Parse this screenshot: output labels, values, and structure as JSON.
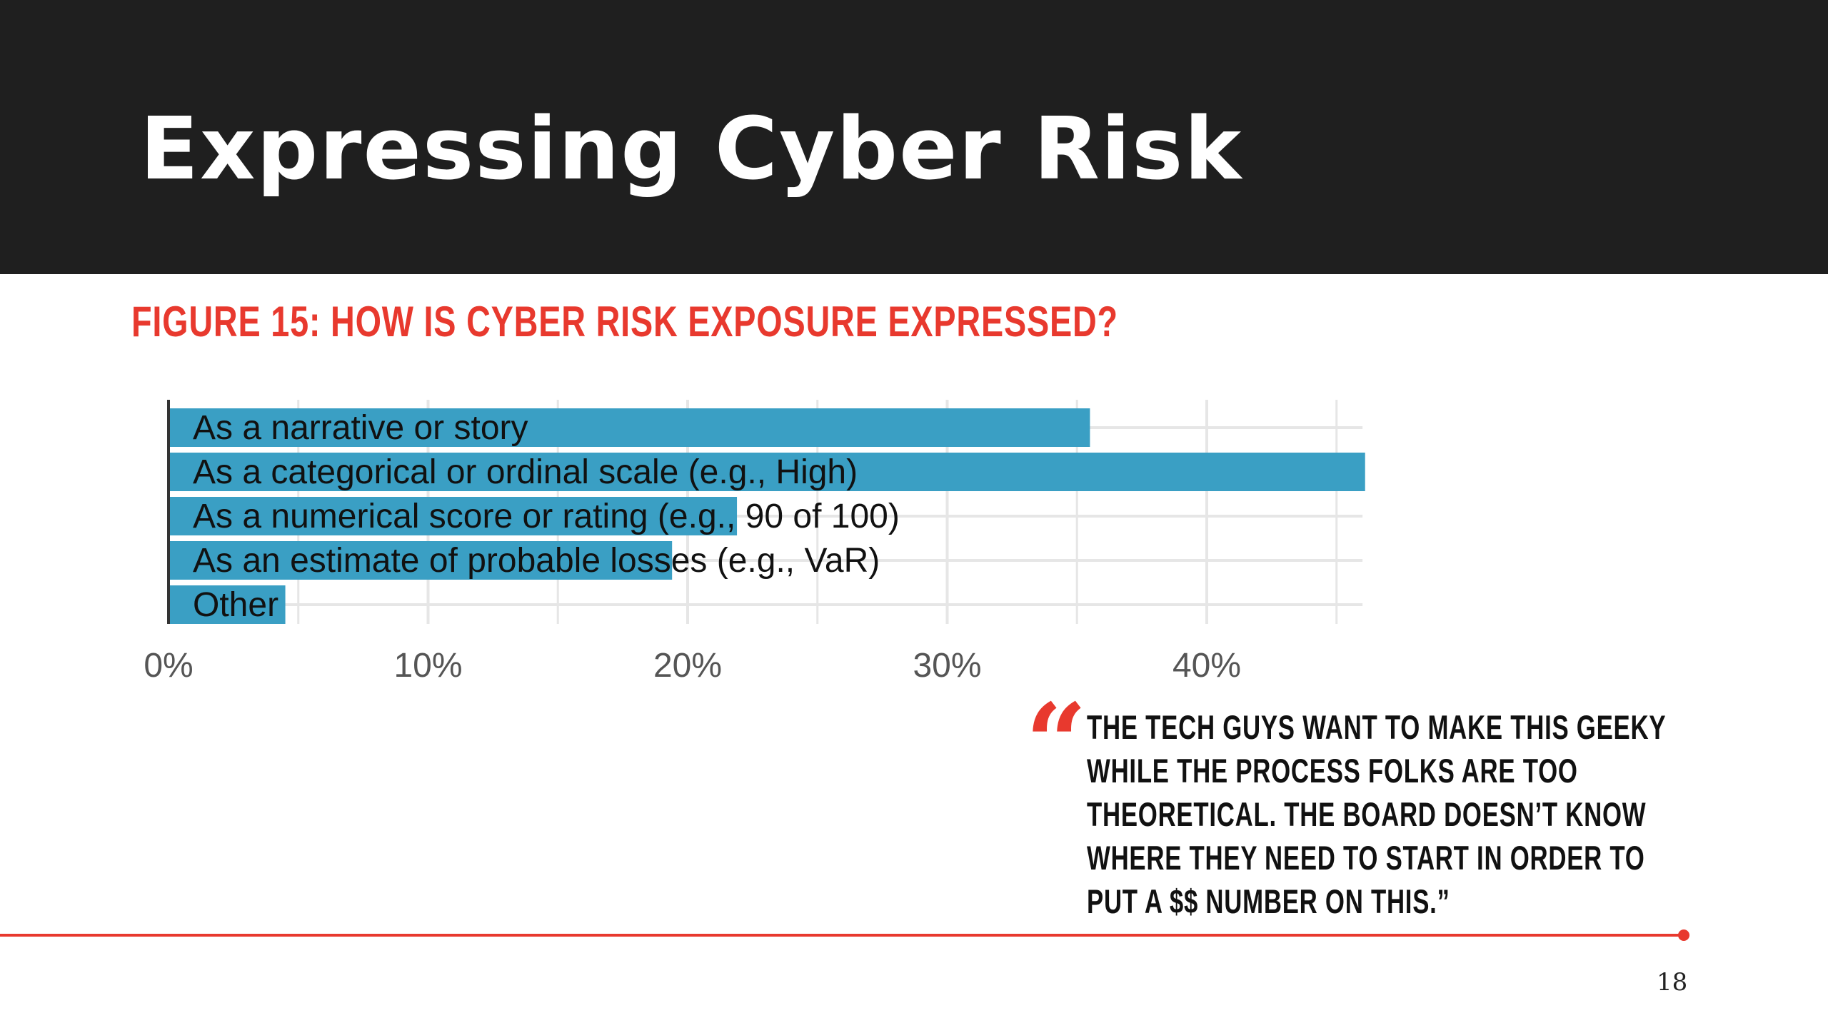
{
  "slide": {
    "title": "Expressing Cyber Risk",
    "figure_title": "FIGURE 15: HOW IS CYBER RISK EXPOSURE EXPRESSED?",
    "quote_mark": "“",
    "quote": "THE TECH GUYS WANT TO MAKE THIS GEEKY WHILE THE PROCESS FOLKS ARE TOO THEORETICAL. THE BOARD DOESN’T KNOW WHERE THEY NEED TO START IN ORDER TO PUT A $$ NUMBER ON THIS.”",
    "page_number": "18"
  },
  "colors": {
    "bar": "#3a9fc4",
    "accent": "#e8392e",
    "header_bg": "#1f1f1f",
    "grid": "#e6e6e6"
  },
  "chart_data": {
    "type": "bar",
    "orientation": "horizontal",
    "categories": [
      "As a narrative or story",
      "As a categorical or ordinal scale (e.g., High)",
      "As a numerical score or rating (e.g., 90 of 100)",
      "As an estimate of probable losses (e.g., VaR)",
      "Other"
    ],
    "values": [
      35.5,
      46.1,
      21.9,
      19.4,
      4.5
    ],
    "xlim": [
      0,
      46
    ],
    "xticks": [
      0,
      10,
      20,
      30,
      40
    ],
    "xtick_labels": [
      "0%",
      "10%",
      "20%",
      "30%",
      "40%"
    ],
    "grid": true
  }
}
